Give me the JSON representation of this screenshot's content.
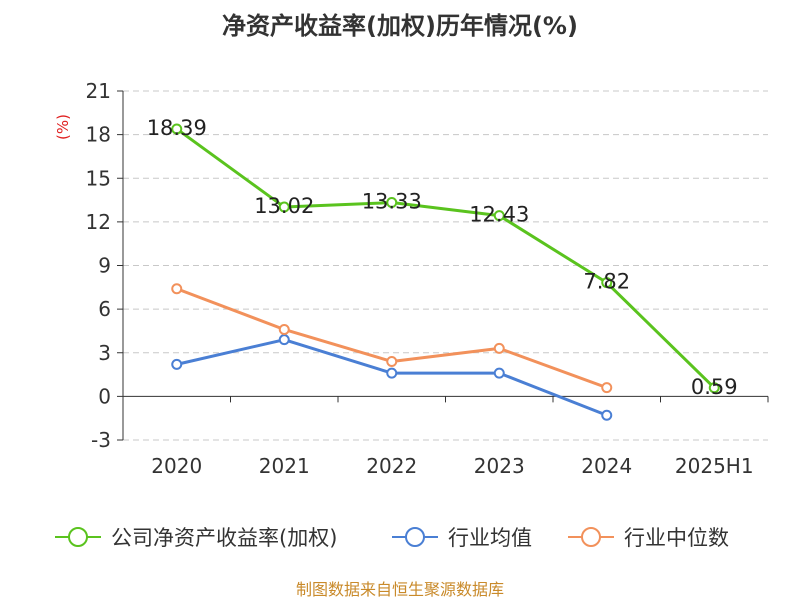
{
  "chart_data": {
    "type": "line",
    "title": "净资产收益率(加权)历年情况(%)",
    "ylabel": "(%)",
    "categories": [
      "2020",
      "2021",
      "2022",
      "2023",
      "2024",
      "2025H1"
    ],
    "ylim": [
      -3,
      21
    ],
    "yticks": [
      -3,
      0,
      3,
      6,
      9,
      12,
      15,
      18,
      21
    ],
    "grid": true,
    "legend_position": "bottom",
    "series": [
      {
        "name": "公司净资产收益率(加权)",
        "color": "#5ac31e",
        "values": [
          18.39,
          13.02,
          13.33,
          12.43,
          7.82,
          0.59
        ],
        "show_labels": true
      },
      {
        "name": "行业均值",
        "color": "#4a7fd4",
        "values": [
          2.2,
          3.9,
          1.6,
          1.6,
          -1.3,
          null
        ],
        "show_labels": false
      },
      {
        "name": "行业中位数",
        "color": "#f2915b",
        "values": [
          7.4,
          4.6,
          2.4,
          3.3,
          0.6,
          null
        ],
        "show_labels": false
      }
    ],
    "unit_color": "#e02020"
  },
  "source": {
    "text": "制图数据来自恒生聚源数据库",
    "color": "#c98a2a"
  }
}
